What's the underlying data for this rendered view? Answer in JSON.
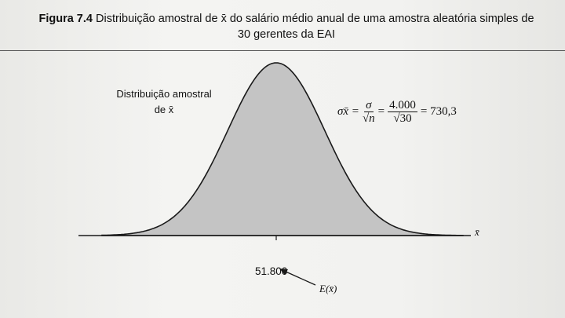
{
  "caption": {
    "figure_label": "Figura 7.4",
    "text": "Distribuição amostral de x̄ do salário médio anual de uma amostra aleatória simples de 30 gerentes da EAI"
  },
  "curve_label": "Distribuição amostral de x̄",
  "formula": {
    "lhs": "σx̄ =",
    "sigma": "σ",
    "root_n": "√n",
    "value_num": "4.000",
    "value_den": "√30",
    "result": "= 730,3"
  },
  "axis": {
    "variable_label": "x̄"
  },
  "mean": {
    "value_label": "51.800",
    "expectation_label": "E(x̄)"
  },
  "colors": {
    "curve_fill": "#c4c4c4",
    "curve_stroke": "#1a1a1a",
    "text": "#111111"
  },
  "chart_data": {
    "type": "area",
    "distribution": "normal",
    "mean": 51800,
    "std_dev": 730.3,
    "title": "Distribuição amostral de x̄",
    "xlabel": "x̄",
    "ylabel": "",
    "x_tick_labels": [
      "51.800"
    ],
    "grid": false
  }
}
